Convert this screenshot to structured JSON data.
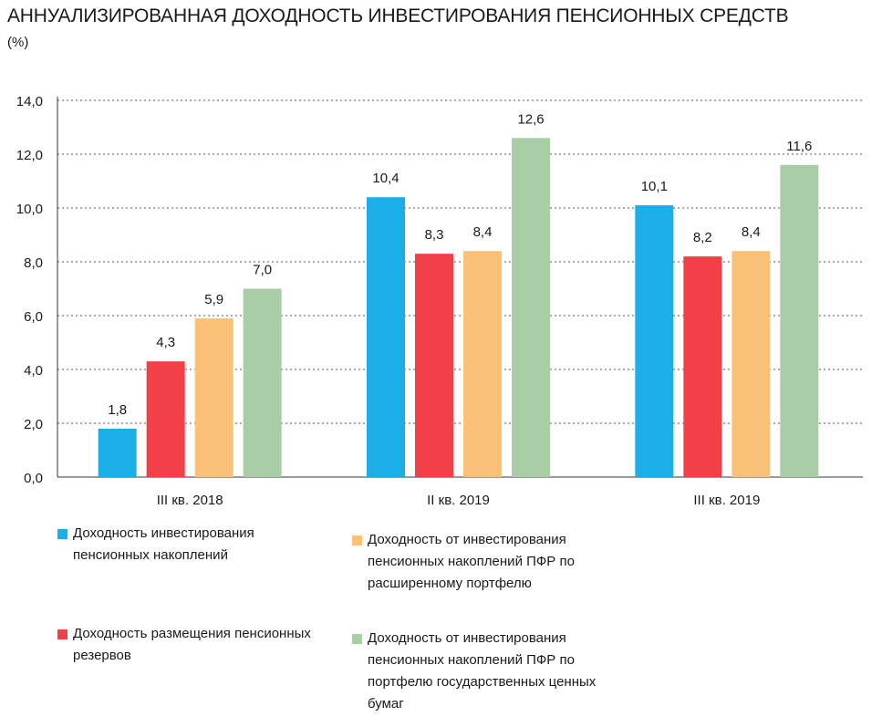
{
  "title": "АННУАЛИЗИРОВАННАЯ ДОХОДНОСТЬ ИНВЕСТИРОВАНИЯ ПЕНСИОННЫХ СРЕДСТВ",
  "subtitle": "(%)",
  "chart_data": {
    "type": "bar",
    "categories": [
      "III кв. 2018",
      "II кв. 2019",
      "III кв. 2019"
    ],
    "series": [
      {
        "name": "Доходность инвестирования пенсионных накоплений",
        "color": "#1baee8",
        "values": [
          1.8,
          10.4,
          10.1
        ],
        "labels": [
          "1,8",
          "10,4",
          "10,1"
        ]
      },
      {
        "name": "Доходность размещения пенсионных резервов",
        "color": "#f24048",
        "values": [
          4.3,
          8.3,
          8.2
        ],
        "labels": [
          "4,3",
          "8,3",
          "8,2"
        ]
      },
      {
        "name": "Доходность от инвестирования пенсионных накоплений ПФР по расширенному портфелю",
        "color": "#fbc176",
        "values": [
          5.9,
          8.4,
          8.4
        ],
        "labels": [
          "5,9",
          "8,4",
          "8,4"
        ]
      },
      {
        "name": "Доходность от инвестирования пенсионных накоплений ПФР по портфелю государственных ценных бумаг",
        "color": "#a9cda7",
        "values": [
          7.0,
          12.6,
          11.6
        ],
        "labels": [
          "7,0",
          "12,6",
          "11,6"
        ]
      }
    ],
    "yticks": [
      "0,0",
      "2,0",
      "4,0",
      "6,0",
      "8,0",
      "10,0",
      "12,0",
      "14,0"
    ],
    "ylim": [
      0,
      14
    ],
    "grid": true
  },
  "legend": [
    {
      "lines": [
        "Доходность инвестирования",
        "пенсионных накоплений"
      ],
      "color": "#1baee8"
    },
    {
      "lines": [
        "Доходность от инвестирования",
        "пенсионных накоплений ПФР по",
        "расширенному портфелю"
      ],
      "color": "#fbc176"
    },
    {
      "lines": [
        "Доходность размещения пенсионных",
        "резервов"
      ],
      "color": "#f24048"
    },
    {
      "lines": [
        "Доходность от инвестирования",
        "пенсионных накоплений ПФР по",
        "портфелю государственных ценных",
        "бумаг"
      ],
      "color": "#a9cda7"
    }
  ]
}
